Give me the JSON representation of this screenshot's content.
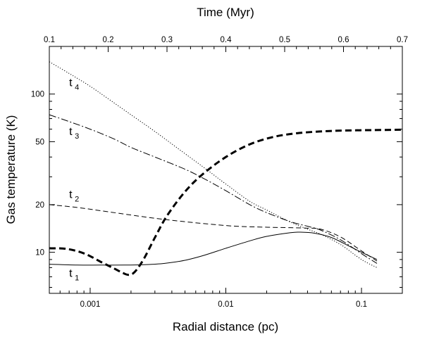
{
  "chart_data": {
    "type": "line",
    "title": "",
    "xlabel": "Radial distance (pc)",
    "ylabel": "Gas temperature (K)",
    "x2label": "Time (Myr)",
    "xscale": "log",
    "yscale": "log",
    "xlim": [
      0.0005,
      0.2
    ],
    "ylim": [
      5.5,
      200
    ],
    "x2lim": [
      0.1,
      0.7
    ],
    "x_ticks": [
      {
        "value": 0.001,
        "label": "0.001"
      },
      {
        "value": 0.01,
        "label": "0.01"
      },
      {
        "value": 0.1,
        "label": "0.1"
      }
    ],
    "y_ticks": [
      {
        "value": 10,
        "label": "10"
      },
      {
        "value": 20,
        "label": "20"
      },
      {
        "value": 50,
        "label": "50"
      },
      {
        "value": 100,
        "label": "100"
      }
    ],
    "x2_ticks": [
      {
        "value": 0.1,
        "label": "0.1"
      },
      {
        "value": 0.2,
        "label": "0.2"
      },
      {
        "value": 0.3,
        "label": "0.3"
      },
      {
        "value": 0.4,
        "label": "0.4"
      },
      {
        "value": 0.5,
        "label": "0.5"
      },
      {
        "value": 0.6,
        "label": "0.6"
      },
      {
        "value": 0.7,
        "label": "0.7"
      }
    ],
    "grid": false,
    "legend": "none",
    "series": [
      {
        "name": "t1",
        "axis": "bottom",
        "style": "solid",
        "label_text": "t",
        "label_sub": "1",
        "label_at": {
          "x": 0.0007,
          "y": 7.0
        },
        "x": [
          0.0005,
          0.0008,
          0.0012,
          0.0018,
          0.0025,
          0.0035,
          0.005,
          0.007,
          0.01,
          0.015,
          0.02,
          0.03,
          0.035,
          0.045,
          0.06,
          0.08,
          0.1,
          0.13
        ],
        "y": [
          8.4,
          8.3,
          8.3,
          8.3,
          8.35,
          8.5,
          8.9,
          9.6,
          10.6,
          11.8,
          12.6,
          13.3,
          13.4,
          13.2,
          12.4,
          11.0,
          10.0,
          9.0
        ]
      },
      {
        "name": "t2",
        "axis": "bottom",
        "style": "dashed",
        "label_text": "t",
        "label_sub": "2",
        "label_at": {
          "x": 0.0007,
          "y": 22.0
        },
        "x": [
          0.0005,
          0.0008,
          0.0012,
          0.002,
          0.003,
          0.005,
          0.008,
          0.012,
          0.02,
          0.03,
          0.04,
          0.05,
          0.07,
          0.1,
          0.13
        ],
        "y": [
          20.0,
          19.2,
          18.3,
          17.2,
          16.4,
          15.6,
          15.0,
          14.6,
          14.4,
          14.3,
          14.2,
          14.0,
          12.5,
          10.2,
          8.8
        ]
      },
      {
        "name": "t3",
        "axis": "bottom",
        "style": "dash-dot",
        "label_text": "t",
        "label_sub": "3",
        "label_at": {
          "x": 0.0007,
          "y": 55.0
        },
        "x": [
          0.0005,
          0.0007,
          0.001,
          0.0015,
          0.002,
          0.003,
          0.005,
          0.007,
          0.01,
          0.015,
          0.02,
          0.03,
          0.04,
          0.05,
          0.07,
          0.1,
          0.13
        ],
        "y": [
          74.0,
          67.0,
          60.0,
          52.0,
          46.0,
          40.0,
          33.5,
          29.0,
          24.5,
          20.0,
          17.8,
          15.6,
          14.6,
          13.8,
          12.0,
          9.8,
          8.5
        ]
      },
      {
        "name": "t4",
        "axis": "bottom",
        "style": "dotted",
        "label_text": "t",
        "label_sub": "4",
        "label_at": {
          "x": 0.0007,
          "y": 112.0
        },
        "x": [
          0.0005,
          0.0007,
          0.001,
          0.0015,
          0.002,
          0.003,
          0.005,
          0.007,
          0.01,
          0.015,
          0.02,
          0.03,
          0.04,
          0.05,
          0.07,
          0.1,
          0.13
        ],
        "y": [
          160.0,
          135.0,
          112.0,
          88.0,
          74.0,
          58.0,
          42.0,
          34.0,
          27.0,
          21.0,
          18.5,
          15.5,
          14.0,
          13.0,
          11.2,
          9.0,
          8.0
        ]
      },
      {
        "name": "thick-dashed",
        "axis": "top",
        "style": "thick-dashed",
        "x": [
          0.1,
          0.13,
          0.16,
          0.19,
          0.21,
          0.225,
          0.235,
          0.245,
          0.26,
          0.28,
          0.3,
          0.33,
          0.36,
          0.4,
          0.44,
          0.48,
          0.52,
          0.56,
          0.6,
          0.65,
          0.7
        ],
        "y": [
          10.6,
          10.5,
          9.8,
          8.6,
          7.9,
          7.4,
          7.2,
          7.5,
          9.0,
          12.5,
          17.0,
          24.0,
          31.0,
          40.0,
          48.0,
          53.5,
          56.5,
          58.0,
          58.8,
          59.2,
          59.5
        ]
      }
    ]
  }
}
